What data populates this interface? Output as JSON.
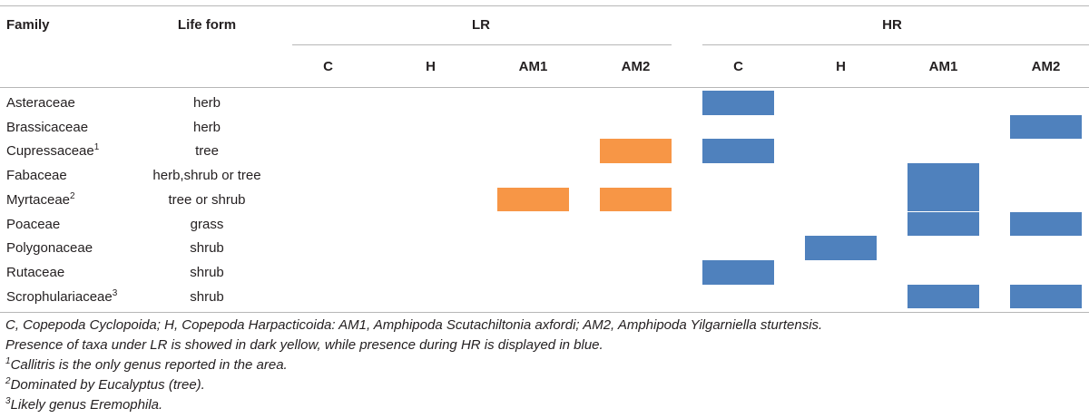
{
  "colors": {
    "lr_bar": "#f79646",
    "hr_bar": "#4f81bd",
    "rule": "#b7b7b7"
  },
  "header": {
    "family": "Family",
    "life_form": "Life form",
    "lr": "LR",
    "hr": "HR",
    "subcolumns": [
      "C",
      "H",
      "AM1",
      "AM2",
      "C",
      "H",
      "AM1",
      "AM2"
    ]
  },
  "rows": [
    {
      "family": "Asteraceae",
      "sup": "",
      "life_form": "herb",
      "presence": [
        0,
        0,
        0,
        0,
        1,
        0,
        0,
        0
      ]
    },
    {
      "family": "Brassicaceae",
      "sup": "",
      "life_form": "herb",
      "presence": [
        0,
        0,
        0,
        0,
        0,
        0,
        0,
        1
      ]
    },
    {
      "family": "Cupressaceae",
      "sup": "1",
      "life_form": "tree",
      "presence": [
        0,
        0,
        0,
        1,
        1,
        0,
        0,
        0
      ]
    },
    {
      "family": "Fabaceae",
      "sup": "",
      "life_form": "herb,shrub or tree",
      "presence": [
        0,
        0,
        0,
        0,
        0,
        0,
        1,
        0
      ]
    },
    {
      "family": "Myrtaceae",
      "sup": "2",
      "life_form": "tree or shrub",
      "presence": [
        0,
        0,
        1,
        1,
        0,
        0,
        1,
        0
      ]
    },
    {
      "family": "Poaceae",
      "sup": "",
      "life_form": "grass",
      "presence": [
        0,
        0,
        0,
        0,
        0,
        0,
        1,
        1
      ]
    },
    {
      "family": "Polygonaceae",
      "sup": "",
      "life_form": "shrub",
      "presence": [
        0,
        0,
        0,
        0,
        0,
        1,
        0,
        0
      ]
    },
    {
      "family": "Rutaceae",
      "sup": "",
      "life_form": "shrub",
      "presence": [
        0,
        0,
        0,
        0,
        1,
        0,
        0,
        0
      ]
    },
    {
      "family": "Scrophulariaceae",
      "sup": "3",
      "life_form": "shrub",
      "presence": [
        0,
        0,
        0,
        0,
        0,
        0,
        1,
        1
      ]
    }
  ],
  "footnotes": {
    "abbrev": "C, Copepoda Cyclopoida; H, Copepoda Harpacticoida: AM1, Amphipoda Scutachiltonia axfordi; AM2, Amphipoda Yilgarniella sturtensis.",
    "presence": "Presence of taxa under LR is showed in dark yellow, while presence during HR is displayed in blue.",
    "notes": [
      {
        "mark": "1",
        "text": "Callitris is the only genus reported in the area."
      },
      {
        "mark": "2",
        "text": "Dominated by Eucalyptus (tree)."
      },
      {
        "mark": "3",
        "text": "Likely genus Eremophila."
      }
    ]
  }
}
